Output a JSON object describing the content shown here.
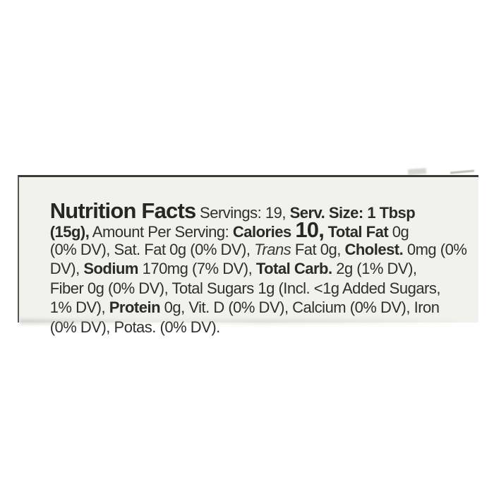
{
  "page": {
    "background_color": "#ffffff"
  },
  "label": {
    "type": "linear-nutrition-facts-panel",
    "background_color": "#f1f1ee",
    "border_color": "#3a3a38",
    "text_color": "#2f2f2f",
    "lines": [
      {
        "segments": [
          {
            "text": "Nutrition Facts",
            "style": "title"
          },
          {
            "text": " Servings: 19, ",
            "style": "regular"
          },
          {
            "text": "Serv. Size: 1 Tbsp",
            "style": "bold"
          }
        ]
      },
      {
        "segments": [
          {
            "text": "(15g),",
            "style": "bold"
          },
          {
            "text": " Amount Per Serving: ",
            "style": "regular"
          },
          {
            "text": "Calories ",
            "style": "bold"
          },
          {
            "text": "10,",
            "style": "big"
          },
          {
            "text": " Total Fat ",
            "style": "bold"
          },
          {
            "text": "0g",
            "style": "regular"
          }
        ]
      },
      {
        "segments": [
          {
            "text": "(0% DV), Sat. Fat 0g (0% DV), ",
            "style": "regular"
          },
          {
            "text": "Trans",
            "style": "italic"
          },
          {
            "text": " Fat 0g, ",
            "style": "regular"
          },
          {
            "text": "Cholest.",
            "style": "bold"
          },
          {
            "text": " 0mg (0%",
            "style": "regular"
          }
        ]
      },
      {
        "segments": [
          {
            "text": "DV), ",
            "style": "regular"
          },
          {
            "text": "Sodium",
            "style": "bold"
          },
          {
            "text": " 170mg (7% DV), ",
            "style": "regular"
          },
          {
            "text": "Total Carb.",
            "style": "bold"
          },
          {
            "text": " 2g (1% DV),",
            "style": "regular"
          }
        ]
      },
      {
        "segments": [
          {
            "text": "Fiber 0g (0% DV), Total Sugars 1g (Incl. <1g Added Sugars,",
            "style": "regular"
          }
        ]
      },
      {
        "segments": [
          {
            "text": "1% DV), ",
            "style": "regular"
          },
          {
            "text": "Protein",
            "style": "bold"
          },
          {
            "text": " 0g, Vit. D (0% DV), Calcium (0% DV), Iron",
            "style": "regular"
          }
        ]
      },
      {
        "segments": [
          {
            "text": "(0% DV), Potas. (0% DV).",
            "style": "regular"
          }
        ]
      }
    ],
    "nutrition_values": {
      "servings": "19",
      "serving_size": "1 Tbsp (15g)",
      "calories": "10",
      "total_fat": "0g (0% DV)",
      "saturated_fat": "0g (0% DV)",
      "trans_fat": "0g",
      "cholesterol": "0mg (0% DV)",
      "sodium": "170mg (7% DV)",
      "total_carbohydrate": "2g (1% DV)",
      "fiber": "0g (0% DV)",
      "total_sugars": "1g",
      "added_sugars": "<1g (1% DV)",
      "protein": "0g",
      "vitamin_d": "0% DV",
      "calcium": "0% DV",
      "iron": "0% DV",
      "potassium": "0% DV"
    }
  }
}
